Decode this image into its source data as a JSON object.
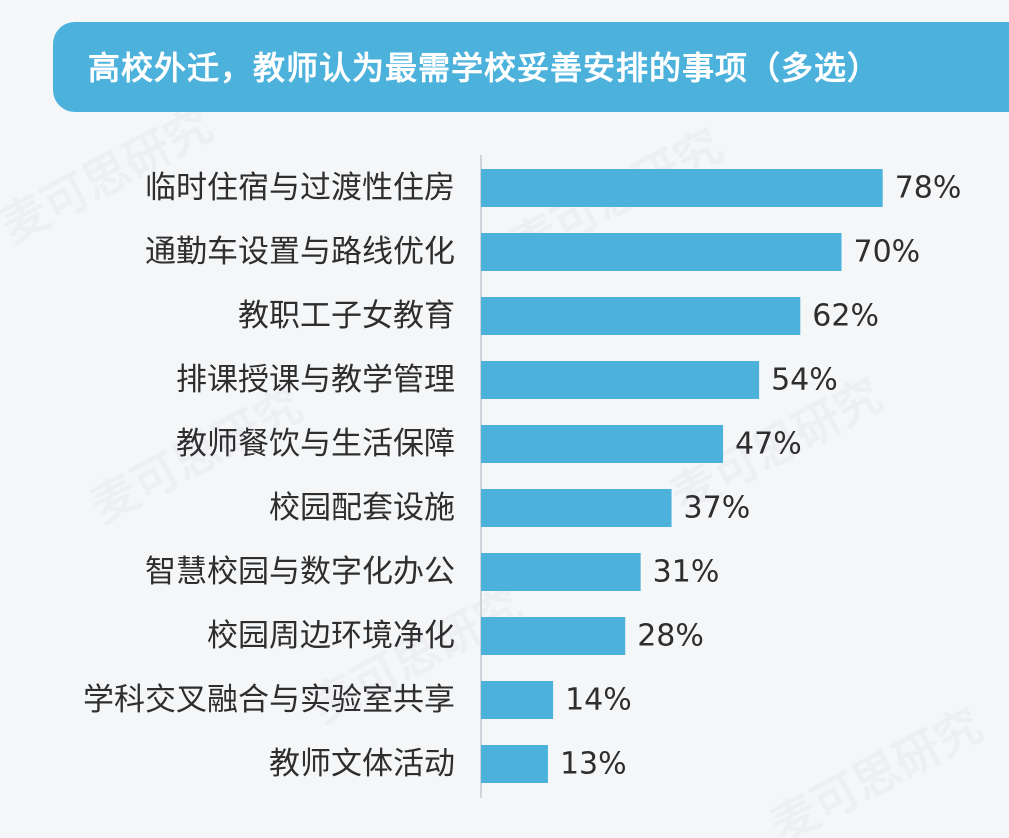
{
  "title": "高校外迁，教师认为最需学校妥善安排的事项（多选）",
  "watermark_text": "麦可思研究",
  "colors": {
    "bar": "#4cb2dc",
    "banner": "#4cb2dc",
    "axis": "#cfd4da",
    "text": "#2e2e2e"
  },
  "chart_data": {
    "type": "bar",
    "orientation": "horizontal",
    "title": "高校外迁，教师认为最需学校妥善安排的事项（多选）",
    "xlabel": "",
    "ylabel": "",
    "xlim": [
      0,
      100
    ],
    "unit": "%",
    "grid": false,
    "legend": "none",
    "categories": [
      "临时住宿与过渡性住房",
      "通勤车设置与路线优化",
      "教职工子女教育",
      "排课授课与教学管理",
      "教师餐饮与生活保障",
      "校园配套设施",
      "智慧校园与数字化办公",
      "校园周边环境净化",
      "学科交叉融合与实验室共享",
      "教师文体活动"
    ],
    "values": [
      78,
      70,
      62,
      54,
      47,
      37,
      31,
      28,
      14,
      13
    ],
    "value_labels": [
      "78%",
      "70%",
      "62%",
      "54%",
      "47%",
      "37%",
      "31%",
      "28%",
      "14%",
      "13%"
    ]
  }
}
